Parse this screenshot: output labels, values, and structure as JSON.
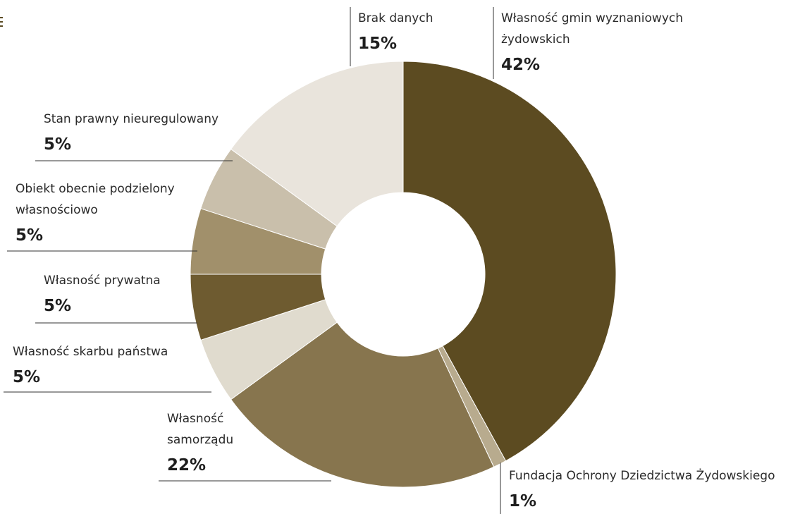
{
  "chart_data": {
    "type": "pie",
    "donut": true,
    "slices": [
      {
        "label": "Własność gmin wyznaniowych żydowskich",
        "label_lines": [
          "Własność gmin wyznaniowych",
          "żydowskich"
        ],
        "value": 42,
        "value_label": "42%",
        "color": "#5c4b21"
      },
      {
        "label": "Fundacja Ochrony Dziedzictwa Żydowskiego",
        "label_lines": [
          "Fundacja Ochrony Dziedzictwa Żydowskiego"
        ],
        "value": 1,
        "value_label": "1%",
        "color": "#b8ab8e"
      },
      {
        "label": "Własność samorządu",
        "label_lines": [
          "Własność",
          "samorządu"
        ],
        "value": 22,
        "value_label": "22%",
        "color": "#87754e"
      },
      {
        "label": "Własność skarbu państwa",
        "label_lines": [
          "Własność skarbu państwa"
        ],
        "value": 5,
        "value_label": "5%",
        "color": "#e0dbce"
      },
      {
        "label": "Własność prywatna",
        "label_lines": [
          "Własność prywatna"
        ],
        "value": 5,
        "value_label": "5%",
        "color": "#6e5b30"
      },
      {
        "label": "Obiekt obecnie podzielony własnościowo",
        "label_lines": [
          "Obiekt obecnie podzielony",
          "własnościowo"
        ],
        "value": 5,
        "value_label": "5%",
        "color": "#a1906b"
      },
      {
        "label": "Stan prawny nieuregulowany",
        "label_lines": [
          "Stan prawny nieuregulowany"
        ],
        "value": 5,
        "value_label": "5%",
        "color": "#c9bfab"
      },
      {
        "label": "Brak danych",
        "label_lines": [
          "Brak danych"
        ],
        "value": 15,
        "value_label": "15%",
        "color": "#e9e4dc"
      }
    ]
  }
}
